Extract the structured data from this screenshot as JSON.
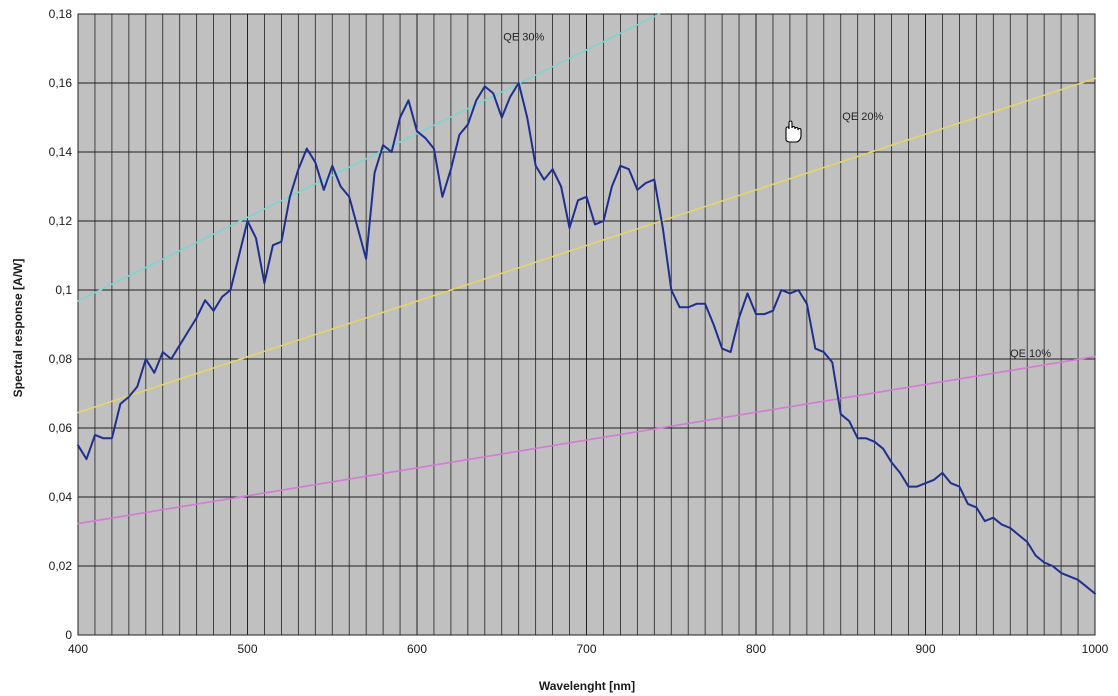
{
  "chart_data": {
    "type": "line",
    "xlabel": "Wavelenght [nm]",
    "ylabel": "Spectral response [A/W]",
    "xlim": [
      400,
      1000
    ],
    "ylim": [
      0,
      0.18
    ],
    "x_ticks": [
      "400",
      "500",
      "600",
      "700",
      "800",
      "900",
      "1000"
    ],
    "y_ticks": [
      "0",
      "0,02",
      "0,04",
      "0,06",
      "0,08",
      "0,1",
      "0,12",
      "0,14",
      "0,16",
      "0,18"
    ],
    "grid": true,
    "plot_background": "#c0c0c0",
    "grid_color": "#202020",
    "series": [
      {
        "color": "#1f2f8f",
        "x": [
          400,
          405,
          410,
          415,
          420,
          425,
          430,
          435,
          440,
          445,
          450,
          455,
          460,
          465,
          470,
          475,
          480,
          485,
          490,
          495,
          500,
          505,
          510,
          515,
          520,
          525,
          530,
          535,
          540,
          545,
          550,
          555,
          560,
          565,
          570,
          575,
          580,
          585,
          590,
          595,
          600,
          605,
          610,
          615,
          620,
          625,
          630,
          635,
          640,
          645,
          650,
          655,
          660,
          665,
          670,
          675,
          680,
          685,
          690,
          695,
          700,
          705,
          710,
          715,
          720,
          725,
          730,
          735,
          740,
          745,
          750,
          755,
          760,
          765,
          770,
          775,
          780,
          785,
          790,
          795,
          800,
          805,
          810,
          815,
          820,
          825,
          830,
          835,
          840,
          845,
          850,
          855,
          860,
          865,
          870,
          875,
          880,
          885,
          890,
          895,
          900,
          905,
          910,
          915,
          920,
          925,
          930,
          935,
          940,
          945,
          950,
          955,
          960,
          965,
          970,
          975,
          980,
          985,
          990,
          995,
          1000
        ],
        "y": [
          0.055,
          0.051,
          0.058,
          0.057,
          0.057,
          0.067,
          0.069,
          0.072,
          0.08,
          0.076,
          0.082,
          0.08,
          0.084,
          0.088,
          0.092,
          0.097,
          0.094,
          0.098,
          0.1,
          0.11,
          0.12,
          0.115,
          0.102,
          0.113,
          0.114,
          0.127,
          0.135,
          0.141,
          0.137,
          0.129,
          0.136,
          0.13,
          0.127,
          0.118,
          0.109,
          0.134,
          0.142,
          0.14,
          0.15,
          0.155,
          0.146,
          0.144,
          0.141,
          0.127,
          0.135,
          0.145,
          0.148,
          0.155,
          0.159,
          0.157,
          0.15,
          0.156,
          0.16,
          0.15,
          0.136,
          0.132,
          0.135,
          0.13,
          0.118,
          0.126,
          0.127,
          0.119,
          0.12,
          0.13,
          0.136,
          0.135,
          0.129,
          0.131,
          0.132,
          0.118,
          0.1,
          0.095,
          0.095,
          0.096,
          0.096,
          0.09,
          0.083,
          0.082,
          0.092,
          0.099,
          0.093,
          0.093,
          0.094,
          0.1,
          0.099,
          0.1,
          0.096,
          0.083,
          0.082,
          0.079,
          0.064,
          0.062,
          0.057,
          0.057,
          0.056,
          0.054,
          0.05,
          0.047,
          0.043,
          0.043,
          0.044,
          0.045,
          0.047,
          0.044,
          0.043,
          0.038,
          0.037,
          0.033,
          0.034,
          0.032,
          0.031,
          0.029,
          0.027,
          0.023,
          0.021,
          0.02,
          0.018,
          0.017,
          0.016,
          0.014,
          0.012
        ]
      },
      {
        "name": "QE 30%",
        "color": "#7fd3d3",
        "x": [
          400,
          743
        ],
        "y": [
          0.0968,
          0.18
        ]
      },
      {
        "name": "QE 20%",
        "color": "#e6d36a",
        "x": [
          400,
          1000
        ],
        "y": [
          0.0645,
          0.1613
        ]
      },
      {
        "name": "QE 10%",
        "color": "#d27ad6",
        "x": [
          400,
          1000
        ],
        "y": [
          0.0323,
          0.0807
        ]
      }
    ],
    "annotations": [
      {
        "text": "QE 30%",
        "x": 663,
        "y": 0.1735
      },
      {
        "text": "QE 20%",
        "x": 863,
        "y": 0.1505
      },
      {
        "text": "QE 10%",
        "x": 962,
        "y": 0.0818
      }
    ]
  },
  "cursor": {
    "icon": "hand-cursor-icon"
  }
}
